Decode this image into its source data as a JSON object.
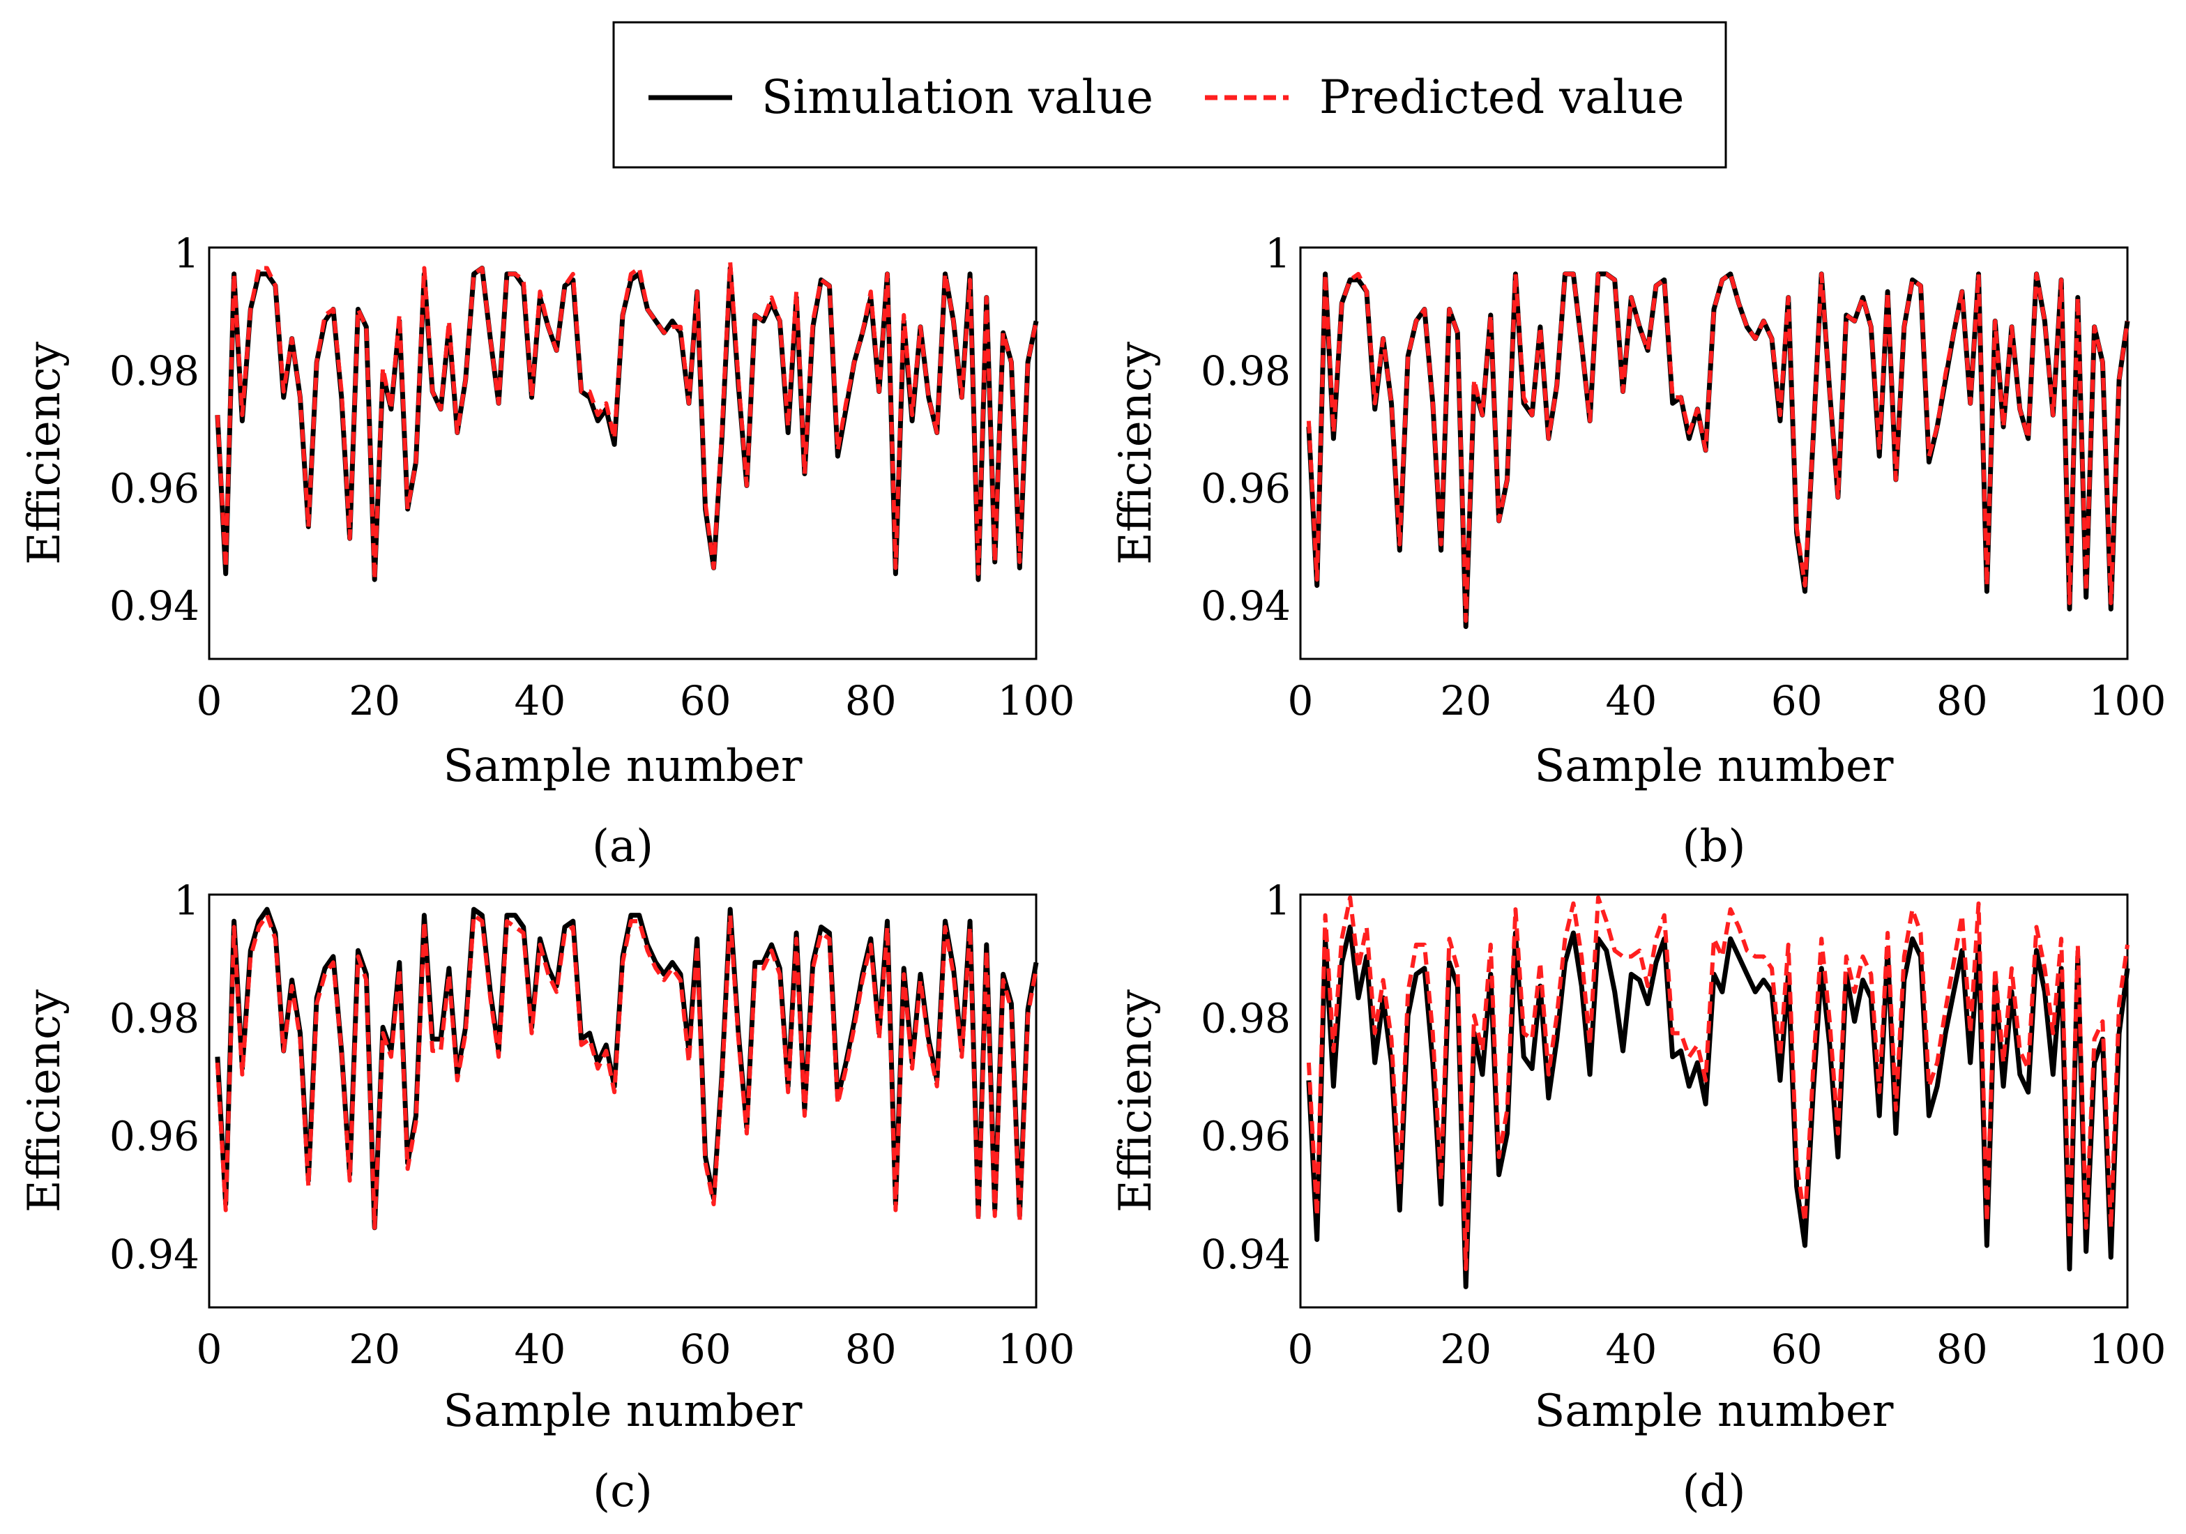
{
  "legend": {
    "entries": [
      {
        "label": "Simulation value",
        "color": "#000000",
        "style": "solid"
      },
      {
        "label": "Predicted value",
        "color": "#ff1f1f",
        "style": "dashed"
      }
    ]
  },
  "chart_data": [
    {
      "type": "line",
      "caption": "(a)",
      "xlabel": "Sample number",
      "ylabel": "Efficiency",
      "xlim": [
        0,
        100
      ],
      "ylim": [
        0.931,
        1.001
      ],
      "xticks": [
        0,
        20,
        40,
        60,
        80,
        100
      ],
      "xtick_labels": [
        "0",
        "20",
        "40",
        "60",
        "80",
        "100"
      ],
      "yticks": [
        0.94,
        0.96,
        0.98,
        1
      ],
      "ytick_labels": [
        "0.94",
        "0.96",
        "0.98",
        "1"
      ],
      "series": [
        {
          "name": "Simulation value",
          "values": [
            0.9725,
            0.9455,
            0.9965,
            0.9715,
            0.9905,
            0.9965,
            0.9965,
            0.9945,
            0.9755,
            0.9855,
            0.9755,
            0.9535,
            0.9815,
            0.9885,
            0.9905,
            0.9755,
            0.9515,
            0.9905,
            0.9875,
            0.9445,
            0.9795,
            0.9735,
            0.9885,
            0.9565,
            0.9645,
            0.9965,
            0.9765,
            0.9735,
            0.9875,
            0.9695,
            0.9785,
            0.9965,
            0.9975,
            0.9855,
            0.9745,
            0.9965,
            0.9965,
            0.9945,
            0.9755,
            0.9925,
            0.9875,
            0.9835,
            0.9945,
            0.9955,
            0.9765,
            0.9755,
            0.9715,
            0.9735,
            0.9675,
            0.9895,
            0.9955,
            0.9965,
            0.9905,
            0.9885,
            0.9865,
            0.9885,
            0.9865,
            0.9745,
            0.9935,
            0.9565,
            0.9465,
            0.9685,
            0.9975,
            0.9775,
            0.9605,
            0.9895,
            0.9885,
            0.9915,
            0.9885,
            0.9695,
            0.9925,
            0.9625,
            0.9875,
            0.9955,
            0.9945,
            0.9655,
            0.9735,
            0.9815,
            0.9865,
            0.9925,
            0.9765,
            0.9965,
            0.9455,
            0.9885,
            0.9715,
            0.9875,
            0.9755,
            0.9695,
            0.9965,
            0.9885,
            0.9755,
            0.9965,
            0.9445,
            0.9925,
            0.9475,
            0.9865,
            0.9815,
            0.9465,
            0.9815,
            0.9885
          ]
        },
        {
          "name": "Predicted value",
          "values": [
            0.9725,
            0.9465,
            0.9965,
            0.9725,
            0.9905,
            0.9975,
            0.9975,
            0.9945,
            0.9765,
            0.9855,
            0.9755,
            0.9535,
            0.9815,
            0.9895,
            0.9905,
            0.9765,
            0.9515,
            0.9905,
            0.9875,
            0.9445,
            0.9805,
            0.9735,
            0.9895,
            0.9565,
            0.9645,
            0.9975,
            0.9765,
            0.9735,
            0.9885,
            0.9695,
            0.9785,
            0.9965,
            0.9975,
            0.9855,
            0.9745,
            0.9965,
            0.9965,
            0.9955,
            0.9755,
            0.9935,
            0.9875,
            0.9835,
            0.9945,
            0.9965,
            0.9765,
            0.9765,
            0.9725,
            0.9745,
            0.9685,
            0.9895,
            0.9965,
            0.9975,
            0.9905,
            0.9885,
            0.9865,
            0.9875,
            0.9875,
            0.9745,
            0.9935,
            0.9575,
            0.9465,
            0.9695,
            0.9985,
            0.9785,
            0.9605,
            0.9895,
            0.9885,
            0.9925,
            0.9885,
            0.9705,
            0.9935,
            0.9625,
            0.9885,
            0.9955,
            0.9945,
            0.9665,
            0.9745,
            0.9815,
            0.9865,
            0.9935,
            0.9765,
            0.9965,
            0.9465,
            0.9895,
            0.9725,
            0.9875,
            0.9755,
            0.9695,
            0.9965,
            0.9885,
            0.9755,
            0.9955,
            0.9455,
            0.9925,
            0.9475,
            0.9865,
            0.9815,
            0.9475,
            0.9815,
            0.9885
          ]
        }
      ]
    },
    {
      "type": "line",
      "caption": "(b)",
      "xlabel": "Sample number",
      "ylabel": "Efficiency",
      "xlim": [
        0,
        100
      ],
      "ylim": [
        0.931,
        1.001
      ],
      "xticks": [
        0,
        20,
        40,
        60,
        80,
        100
      ],
      "xtick_labels": [
        "0",
        "20",
        "40",
        "60",
        "80",
        "100"
      ],
      "yticks": [
        0.94,
        0.96,
        0.98,
        1
      ],
      "ytick_labels": [
        "0.94",
        "0.96",
        "0.98",
        "1"
      ],
      "series": [
        {
          "name": "Simulation value",
          "values": [
            0.9705,
            0.9435,
            0.9965,
            0.9685,
            0.9915,
            0.9955,
            0.9955,
            0.9935,
            0.9735,
            0.9855,
            0.9745,
            0.9495,
            0.9825,
            0.9885,
            0.9905,
            0.9745,
            0.9495,
            0.9905,
            0.9865,
            0.9365,
            0.9775,
            0.9725,
            0.9895,
            0.9545,
            0.9615,
            0.9965,
            0.9745,
            0.9725,
            0.9875,
            0.9685,
            0.9775,
            0.9965,
            0.9965,
            0.9845,
            0.9715,
            0.9965,
            0.9965,
            0.9955,
            0.9765,
            0.9925,
            0.9875,
            0.9835,
            0.9945,
            0.9955,
            0.9745,
            0.9755,
            0.9685,
            0.9735,
            0.9665,
            0.9905,
            0.9955,
            0.9965,
            0.9915,
            0.9875,
            0.9855,
            0.9885,
            0.9855,
            0.9715,
            0.9925,
            0.9525,
            0.9425,
            0.9685,
            0.9965,
            0.9765,
            0.9585,
            0.9895,
            0.9885,
            0.9925,
            0.9875,
            0.9655,
            0.9935,
            0.9615,
            0.9875,
            0.9955,
            0.9945,
            0.9645,
            0.9705,
            0.9785,
            0.9865,
            0.9935,
            0.9745,
            0.9965,
            0.9425,
            0.9885,
            0.9705,
            0.9875,
            0.9735,
            0.9685,
            0.9965,
            0.9885,
            0.9725,
            0.9955,
            0.9395,
            0.9925,
            0.9415,
            0.9875,
            0.9815,
            0.9395,
            0.9785,
            0.9885
          ]
        },
        {
          "name": "Predicted value",
          "values": [
            0.9715,
            0.9445,
            0.9965,
            0.9695,
            0.9915,
            0.9955,
            0.9965,
            0.9935,
            0.9745,
            0.9855,
            0.9745,
            0.9505,
            0.9825,
            0.9885,
            0.9905,
            0.9745,
            0.9505,
            0.9905,
            0.9865,
            0.9375,
            0.9785,
            0.9725,
            0.9895,
            0.9545,
            0.9615,
            0.9965,
            0.9755,
            0.9725,
            0.9875,
            0.9685,
            0.9775,
            0.9965,
            0.9965,
            0.9845,
            0.9715,
            0.9965,
            0.9965,
            0.9955,
            0.9765,
            0.9925,
            0.9875,
            0.9835,
            0.9945,
            0.9955,
            0.9755,
            0.9755,
            0.9695,
            0.9735,
            0.9665,
            0.9905,
            0.9955,
            0.9965,
            0.9915,
            0.9875,
            0.9855,
            0.9885,
            0.9855,
            0.9725,
            0.9925,
            0.9535,
            0.9435,
            0.9685,
            0.9965,
            0.9765,
            0.9585,
            0.9895,
            0.9885,
            0.9925,
            0.9875,
            0.9665,
            0.9935,
            0.9615,
            0.9875,
            0.9955,
            0.9945,
            0.9655,
            0.9705,
            0.9795,
            0.9865,
            0.9935,
            0.9745,
            0.9965,
            0.9435,
            0.9885,
            0.9705,
            0.9875,
            0.9735,
            0.9685,
            0.9965,
            0.9885,
            0.9725,
            0.9955,
            0.9405,
            0.9925,
            0.9425,
            0.9875,
            0.9815,
            0.9405,
            0.9785,
            0.9885
          ]
        }
      ]
    },
    {
      "type": "line",
      "caption": "(c)",
      "xlabel": "Sample number",
      "ylabel": "Efficiency",
      "xlim": [
        0,
        100
      ],
      "ylim": [
        0.931,
        1.001
      ],
      "xticks": [
        0,
        20,
        40,
        60,
        80,
        100
      ],
      "xtick_labels": [
        "0",
        "20",
        "40",
        "60",
        "80",
        "100"
      ],
      "yticks": [
        0.94,
        0.96,
        0.98,
        1
      ],
      "ytick_labels": [
        "0.94",
        "0.96",
        "0.98",
        "1"
      ],
      "series": [
        {
          "name": "Simulation value",
          "values": [
            0.9735,
            0.9485,
            0.9965,
            0.9715,
            0.9915,
            0.9965,
            0.9985,
            0.9945,
            0.9745,
            0.9865,
            0.9775,
            0.9525,
            0.9835,
            0.9885,
            0.9905,
            0.9745,
            0.9535,
            0.9915,
            0.9875,
            0.9445,
            0.9785,
            0.9745,
            0.9895,
            0.9555,
            0.9635,
            0.9975,
            0.9765,
            0.9765,
            0.9885,
            0.9705,
            0.9785,
            0.9985,
            0.9975,
            0.9845,
            0.9745,
            0.9975,
            0.9975,
            0.9955,
            0.9785,
            0.9935,
            0.9885,
            0.9855,
            0.9955,
            0.9965,
            0.9765,
            0.9775,
            0.9725,
            0.9755,
            0.9685,
            0.9905,
            0.9975,
            0.9975,
            0.9925,
            0.9895,
            0.9875,
            0.9895,
            0.9875,
            0.9745,
            0.9935,
            0.9565,
            0.9495,
            0.9705,
            0.9985,
            0.9775,
            0.9615,
            0.9895,
            0.9895,
            0.9925,
            0.9885,
            0.9685,
            0.9945,
            0.9645,
            0.9895,
            0.9955,
            0.9945,
            0.9665,
            0.9725,
            0.9795,
            0.9875,
            0.9935,
            0.9775,
            0.9965,
            0.9485,
            0.9885,
            0.9725,
            0.9875,
            0.9765,
            0.9695,
            0.9965,
            0.9885,
            0.9745,
            0.9965,
            0.9465,
            0.9925,
            0.9475,
            0.9875,
            0.9825,
            0.9465,
            0.9815,
            0.9895
          ]
        },
        {
          "name": "Predicted value",
          "values": [
            0.9725,
            0.9475,
            0.9955,
            0.9705,
            0.9905,
            0.9955,
            0.9975,
            0.9935,
            0.9745,
            0.9855,
            0.9765,
            0.9515,
            0.9825,
            0.9875,
            0.9895,
            0.9745,
            0.9525,
            0.9905,
            0.9865,
            0.9445,
            0.9775,
            0.9735,
            0.9885,
            0.9545,
            0.9625,
            0.9965,
            0.9745,
            0.9745,
            0.9875,
            0.9695,
            0.9775,
            0.9975,
            0.9965,
            0.9835,
            0.9735,
            0.9965,
            0.9955,
            0.9945,
            0.9775,
            0.9925,
            0.9875,
            0.9845,
            0.9945,
            0.9955,
            0.9755,
            0.9765,
            0.9715,
            0.9745,
            0.9675,
            0.9895,
            0.9965,
            0.9965,
            0.9915,
            0.9885,
            0.9865,
            0.9885,
            0.9865,
            0.9725,
            0.9925,
            0.9555,
            0.9485,
            0.9695,
            0.9975,
            0.9765,
            0.9605,
            0.9885,
            0.9885,
            0.9915,
            0.9875,
            0.9675,
            0.9935,
            0.9635,
            0.9885,
            0.9945,
            0.9935,
            0.9655,
            0.9715,
            0.9785,
            0.9865,
            0.9925,
            0.9765,
            0.9955,
            0.9475,
            0.9875,
            0.9715,
            0.9865,
            0.9755,
            0.9685,
            0.9955,
            0.9875,
            0.9735,
            0.9955,
            0.9455,
            0.9915,
            0.9465,
            0.9865,
            0.9815,
            0.9455,
            0.9805,
            0.9885
          ]
        }
      ]
    },
    {
      "type": "line",
      "caption": "(d)",
      "xlabel": "Sample number",
      "ylabel": "Efficiency",
      "xlim": [
        0,
        100
      ],
      "ylim": [
        0.931,
        1.001
      ],
      "xticks": [
        0,
        20,
        40,
        60,
        80,
        100
      ],
      "xtick_labels": [
        "0",
        "20",
        "40",
        "60",
        "80",
        "100"
      ],
      "yticks": [
        0.94,
        0.96,
        0.98,
        1
      ],
      "ytick_labels": [
        "0.94",
        "0.96",
        "0.98",
        "1"
      ],
      "series": [
        {
          "name": "Simulation value",
          "values": [
            0.9695,
            0.9425,
            0.9935,
            0.9685,
            0.9895,
            0.9955,
            0.9835,
            0.9905,
            0.9725,
            0.9835,
            0.9725,
            0.9475,
            0.9805,
            0.9875,
            0.9885,
            0.9725,
            0.9485,
            0.9895,
            0.9855,
            0.9345,
            0.9775,
            0.9705,
            0.9875,
            0.9535,
            0.9605,
            0.9945,
            0.9735,
            0.9715,
            0.9855,
            0.9665,
            0.9765,
            0.9895,
            0.9945,
            0.9855,
            0.9705,
            0.9935,
            0.9915,
            0.9845,
            0.9745,
            0.9875,
            0.9865,
            0.9825,
            0.9895,
            0.9935,
            0.9735,
            0.9745,
            0.9685,
            0.9725,
            0.9655,
            0.9875,
            0.9845,
            0.9935,
            0.9905,
            0.9875,
            0.9845,
            0.9865,
            0.9845,
            0.9695,
            0.9875,
            0.9515,
            0.9415,
            0.9675,
            0.9885,
            0.9755,
            0.9565,
            0.9875,
            0.9795,
            0.9865,
            0.9835,
            0.9635,
            0.9915,
            0.9605,
            0.9865,
            0.9935,
            0.9905,
            0.9635,
            0.9685,
            0.9775,
            0.9845,
            0.9915,
            0.9725,
            0.9925,
            0.9415,
            0.9865,
            0.9685,
            0.9845,
            0.9705,
            0.9675,
            0.9915,
            0.9845,
            0.9705,
            0.9885,
            0.9375,
            0.9905,
            0.9405,
            0.9725,
            0.9765,
            0.9395,
            0.9775,
            0.9885
          ]
        },
        {
          "name": "Predicted value",
          "values": [
            0.9725,
            0.9465,
            0.9975,
            0.9745,
            0.9935,
            1.0005,
            0.9885,
            0.9955,
            0.9775,
            0.9865,
            0.9765,
            0.9515,
            0.9845,
            0.9925,
            0.9925,
            0.9775,
            0.9525,
            0.9935,
            0.9885,
            0.9375,
            0.9805,
            0.9745,
            0.9925,
            0.9565,
            0.9645,
            0.9985,
            0.9775,
            0.9765,
            0.9895,
            0.9705,
            0.9805,
            0.9935,
            0.9995,
            0.9905,
            0.9755,
            1.0005,
            0.9965,
            0.9915,
            0.9905,
            0.9905,
            0.9915,
            0.9855,
            0.9935,
            0.9975,
            0.9775,
            0.9775,
            0.9735,
            0.9755,
            0.9695,
            0.9935,
            0.9905,
            0.9985,
            0.9955,
            0.9915,
            0.9905,
            0.9905,
            0.9885,
            0.9735,
            0.9925,
            0.9555,
            0.9455,
            0.9715,
            0.9935,
            0.9795,
            0.9605,
            0.9905,
            0.9845,
            0.9905,
            0.9875,
            0.9675,
            0.9945,
            0.9645,
            0.9905,
            0.9985,
            0.9945,
            0.9685,
            0.9725,
            0.9815,
            0.9895,
            0.9975,
            0.9775,
            0.9995,
            0.9455,
            0.9885,
            0.9725,
            0.9885,
            0.9745,
            0.9715,
            0.9955,
            0.9885,
            0.9775,
            0.9935,
            0.9425,
            0.9925,
            0.9445,
            0.9765,
            0.9795,
            0.9445,
            0.9825,
            0.9925
          ]
        }
      ]
    }
  ]
}
